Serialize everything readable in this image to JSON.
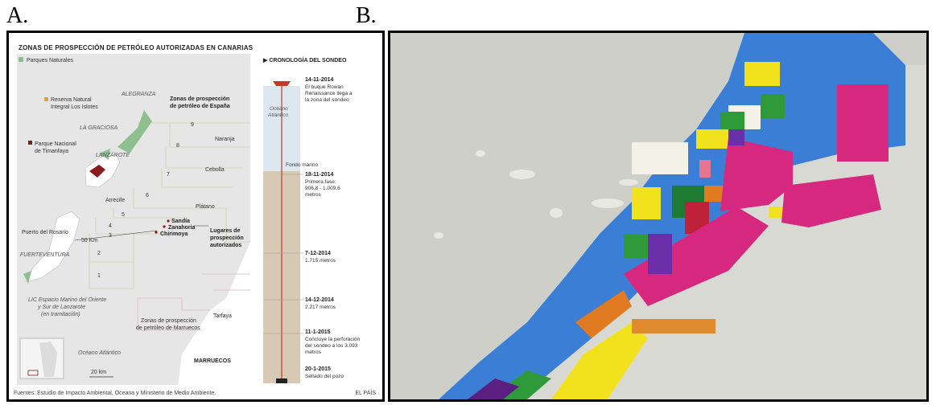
{
  "panel_a_letter": "A.",
  "panel_b_letter": "B.",
  "map": {
    "title": "ZONAS DE PROSPECCIÓN DE PETRÓLEO AUTORIZADAS EN CANARIAS",
    "legend_parks": "Parques Naturales",
    "legend_reserve_1": "Reserva Natural",
    "legend_reserve_2": "Integral Los Islotes",
    "legend_park_1": "Parque Nacional",
    "legend_park_2": "de Timanfaya",
    "island_alegranza": "ALEGRANZA",
    "island_graciosa": "LA GRACIOSA",
    "island_lanzarote": "LANZAROTE",
    "town_arrecife": "Arrecife",
    "town_puerto": "Puerto del Rosario",
    "island_fuerteventura": "FUERTEVENTURA",
    "spain_zones_1": "Zonas de prospección",
    "spain_zones_2": "de petróleo de España",
    "block_9": "9",
    "block_8": "8",
    "block_7": "7",
    "block_6": "6",
    "block_5": "5",
    "block_4": "4",
    "block_3": "3",
    "block_2": "2",
    "block_1": "1",
    "site_naranja": "Naranja",
    "site_cebolla": "Cebolla",
    "site_platano": "Plátano",
    "site_sandia": "Sandía",
    "site_zanahoria": "Zanahoria",
    "site_chirimoya": "Chirimoya",
    "authorized_1": "Lugares de",
    "authorized_2": "prospección",
    "authorized_3": "autorizados",
    "distance": "50 Km",
    "lic_1": "LIC Espacio Marino del Oriente",
    "lic_2": "y Sur de Lanzarote",
    "lic_3": "(en tramitación)",
    "morocco_zones_1": "Zonas de prospección",
    "morocco_zones_2": "de petróleo de Marruecos",
    "town_tarfaya": "Tarfaya",
    "ocean_label": "Océano Atlántico",
    "country_morocco": "MARRUECOS",
    "scale": "20 km"
  },
  "chronology": {
    "title": "CRONOLOGÍA DEL SONDEO",
    "ocean_1": "Océano",
    "ocean_2": "Atlántico",
    "seabed": "Fondo marino",
    "events": [
      {
        "date": "14-11-2014",
        "l1": "El buque Rowan",
        "l2": "Renaissance llega a",
        "l3": "la zona del sondeo",
        "l4": ""
      },
      {
        "date": "18-11-2014",
        "l1": "Primera fase:",
        "l2": "906,8 - 1.009,6",
        "l3": "metros",
        "l4": ""
      },
      {
        "date": "7-12-2014",
        "l1": "1.715 metros",
        "l2": "",
        "l3": "",
        "l4": ""
      },
      {
        "date": "14-12-2014",
        "l1": "2.217 metros",
        "l2": "",
        "l3": "",
        "l4": ""
      },
      {
        "date": "11-1-2015",
        "l1": "Concluye la perforación",
        "l2": "del sondeo a los 3.093",
        "l3": "metros",
        "l4": ""
      },
      {
        "date": "20-1-2015",
        "l1": "Sellado del pozo",
        "l2": "",
        "l3": "",
        "l4": ""
      }
    ]
  },
  "footer": {
    "source": "Fuentes: Estudio de Impacto Ambiental, Oceana y Ministerio de Medio Ambiente.",
    "brand": "EL PAÍS"
  },
  "colors": {
    "park_green": "#8fbf8f",
    "reserve_orange": "#f0a030",
    "timanfaya_red": "#8b1a1a",
    "block_magenta": "#d6287f",
    "block_blue": "#3a7fd5",
    "block_yellow": "#f2e21e",
    "block_green": "#2e9a3a",
    "block_orange": "#e07b22",
    "block_purple": "#6a2fa8",
    "block_white": "#f4f1e8",
    "background_grey": "#cfcfca"
  }
}
